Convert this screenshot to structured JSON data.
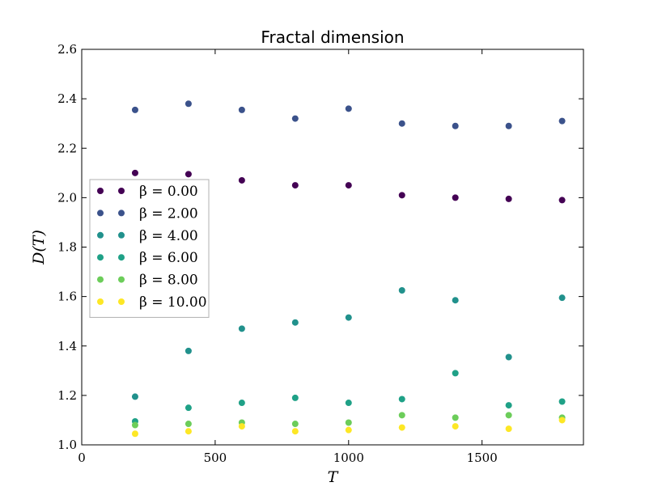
{
  "chart_data": {
    "type": "scatter",
    "title": "Fractal dimension",
    "xlabel": "T",
    "ylabel": "D(T)",
    "xlim": [
      0,
      1880
    ],
    "ylim": [
      1.0,
      2.6
    ],
    "xticks": [
      0,
      500,
      1000,
      1500
    ],
    "yticks": [
      1.0,
      1.2,
      1.4,
      1.6,
      1.8,
      2.0,
      2.2,
      2.4,
      2.6
    ],
    "grid": false,
    "legend_position": "center-left",
    "x": [
      200,
      400,
      600,
      800,
      1000,
      1200,
      1400,
      1600,
      1800
    ],
    "series": [
      {
        "name": "β = 0.00",
        "color": "#440154",
        "values": [
          2.1,
          2.095,
          2.07,
          2.05,
          2.05,
          2.01,
          2.0,
          1.995,
          1.99
        ]
      },
      {
        "name": "β = 2.00",
        "color": "#3b528b",
        "values": [
          2.355,
          2.38,
          2.355,
          2.32,
          2.36,
          2.3,
          2.29,
          2.29,
          2.31
        ]
      },
      {
        "name": "β = 4.00",
        "color": "#21918c",
        "values": [
          1.195,
          1.38,
          1.47,
          1.495,
          1.515,
          1.625,
          1.585,
          1.355,
          1.595
        ]
      },
      {
        "name": "β = 6.00",
        "color": "#1fa187",
        "values": [
          1.095,
          1.15,
          1.17,
          1.19,
          1.17,
          1.185,
          1.29,
          1.16,
          1.175
        ]
      },
      {
        "name": "β = 8.00",
        "color": "#6ccd5a",
        "values": [
          1.08,
          1.085,
          1.09,
          1.085,
          1.09,
          1.12,
          1.11,
          1.12,
          1.11
        ]
      },
      {
        "name": "β = 10.00",
        "color": "#fde725",
        "values": [
          1.045,
          1.055,
          1.075,
          1.055,
          1.06,
          1.07,
          1.075,
          1.065,
          1.1
        ]
      }
    ]
  }
}
